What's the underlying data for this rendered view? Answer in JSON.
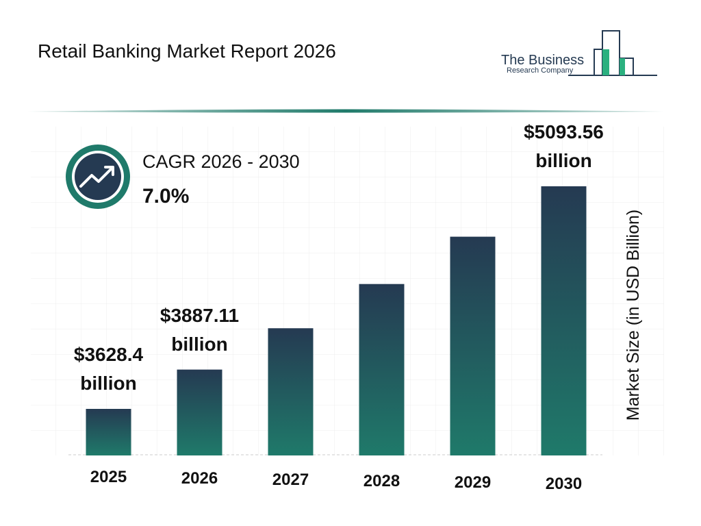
{
  "chart_data": {
    "type": "bar",
    "title": "Retail Banking Market Report 2026",
    "brand_line1": "The Business",
    "brand_line2": "Research Company",
    "cagr_label": "CAGR 2026 - 2030",
    "cagr_value": "7.0%",
    "y_axis_label": "Market Size (in USD Billion)",
    "categories": [
      "2025",
      "2026",
      "2027",
      "2028",
      "2029",
      "2030"
    ],
    "values": [
      3628.4,
      3887.11,
      4159.2,
      4450.3,
      4761.8,
      5093.56
    ],
    "value_labels": [
      "$3628.4 billion",
      "$3887.11 billion",
      null,
      null,
      null,
      "$5093.56 billion"
    ],
    "color_top": "#253a52",
    "color_bottom": "#1f7a6a"
  }
}
